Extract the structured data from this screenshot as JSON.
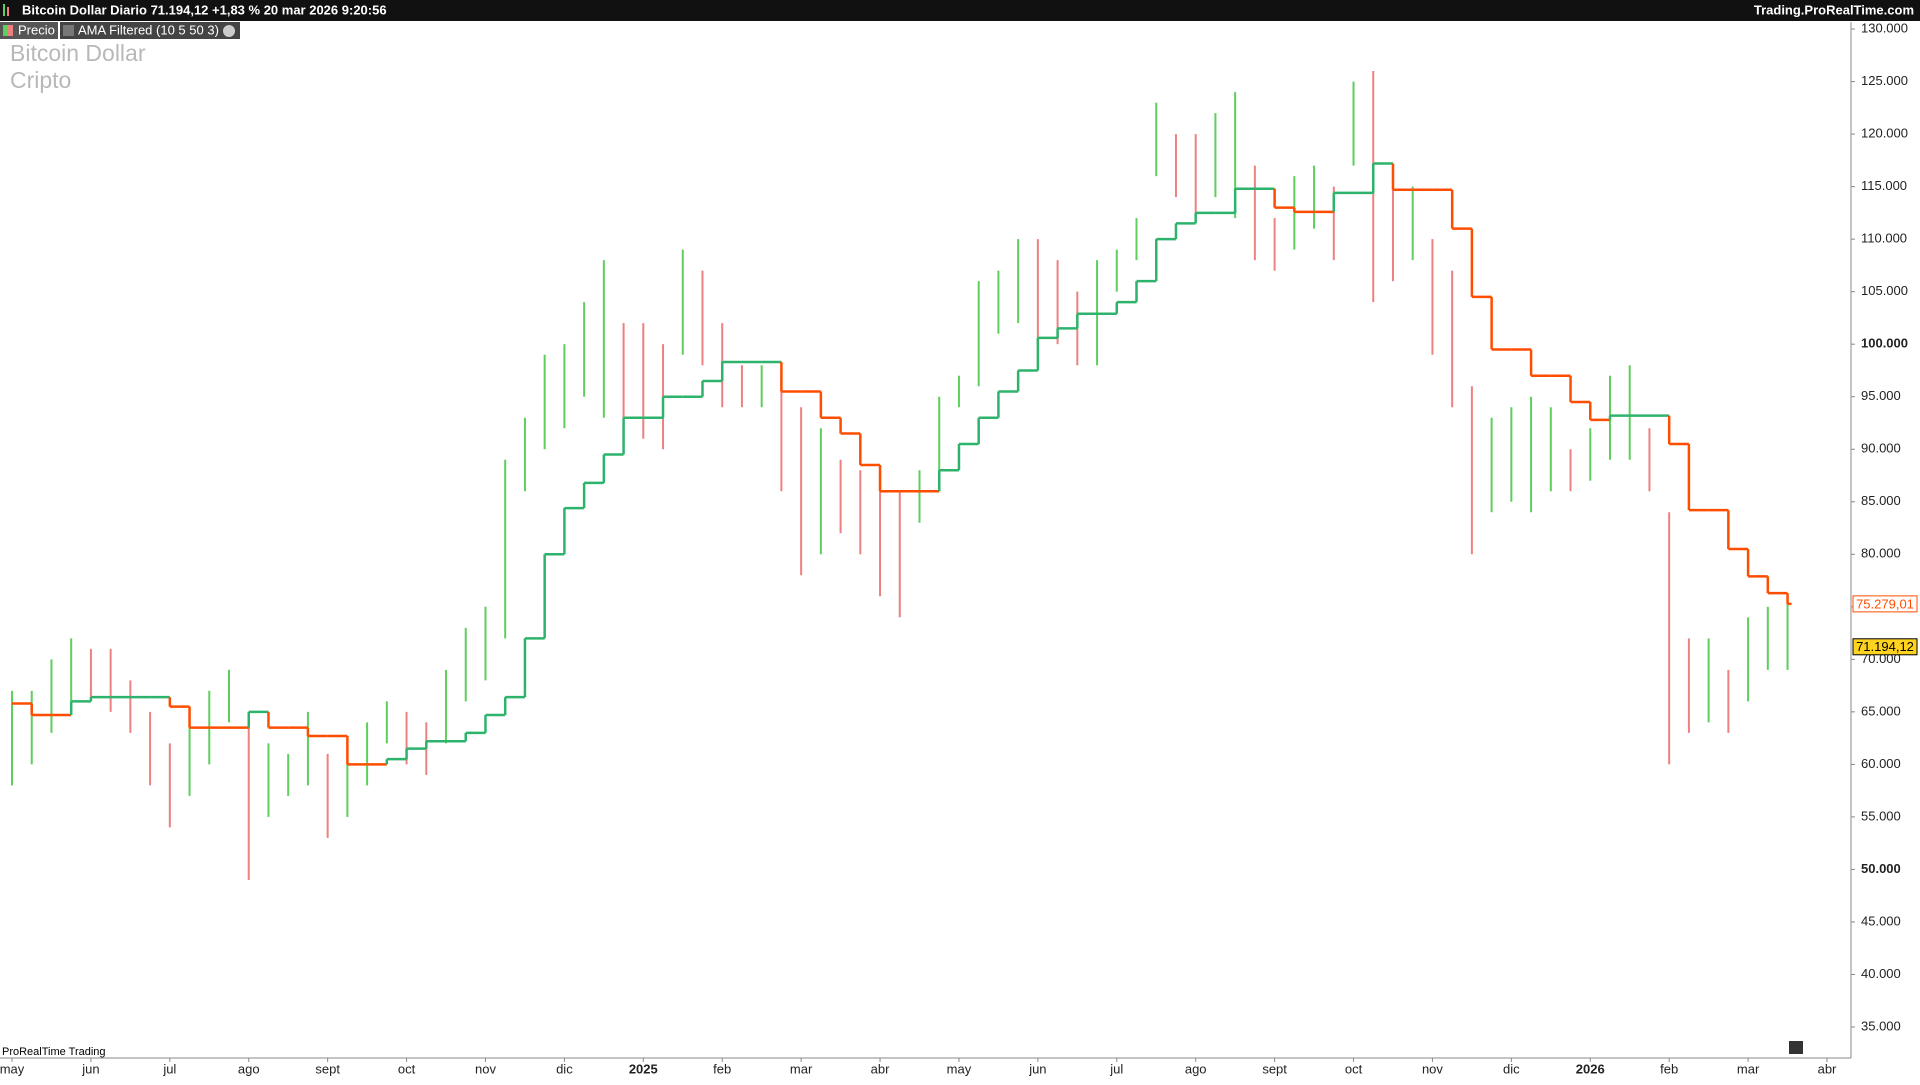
{
  "chart_data": {
    "type": "ohlc",
    "title": "Bitcoin Dollar Diario 71.194,12 +1,83 % 20 mar 2026 9:20:56",
    "source": "Trading.ProRealTime.com",
    "watermark": [
      "Bitcoin Dollar",
      "Cripto"
    ],
    "footer": "ProRealTime Trading",
    "categories": [
      "may",
      null,
      null,
      null,
      "jun",
      null,
      null,
      null,
      "jul",
      null,
      null,
      null,
      "ago",
      null,
      null,
      null,
      "sept",
      null,
      null,
      null,
      "oct",
      null,
      null,
      null,
      "nov",
      null,
      null,
      null,
      "dic",
      null,
      null,
      null,
      "2025",
      null,
      null,
      null,
      "feb",
      null,
      null,
      null,
      "mar",
      null,
      null,
      null,
      "abr",
      null,
      null,
      null,
      "may",
      null,
      null,
      null,
      "jun",
      null,
      null,
      null,
      "jul",
      null,
      null,
      null,
      "ago",
      null,
      null,
      null,
      "sept",
      null,
      null,
      null,
      "oct",
      null,
      null,
      null,
      "nov",
      null,
      null,
      null,
      "dic",
      null,
      null,
      null,
      "2026",
      null,
      null,
      null,
      "feb",
      null,
      null,
      null,
      "mar",
      null,
      null,
      null,
      "abr"
    ],
    "series": [
      {
        "name": "Precio",
        "color_up": "#5ccf5c",
        "color_down": "#ee8080",
        "high": [
          67000,
          67000,
          70000,
          72000,
          71000,
          71000,
          68000,
          65000,
          62000,
          64000,
          67000,
          69000,
          65000,
          62000,
          61000,
          65000,
          61000,
          60000,
          64000,
          66000,
          65000,
          64000,
          69000,
          73000,
          75000,
          89000,
          93000,
          99000,
          100000,
          104000,
          108000,
          102000,
          102000,
          100000,
          109000,
          107000,
          102000,
          98000,
          98000,
          97000,
          94000,
          92000,
          89000,
          88000,
          86000,
          86000,
          88000,
          95000,
          97000,
          106000,
          107000,
          110000,
          110000,
          108000,
          105000,
          108000,
          109000,
          112000,
          123000,
          120000,
          120000,
          122000,
          124000,
          117000,
          112000,
          116000,
          117000,
          115000,
          125000,
          126000,
          116000,
          115000,
          110000,
          107000,
          96000,
          93000,
          94000,
          95000,
          94000,
          90000,
          92000,
          97000,
          98000,
          92000,
          84000,
          72000,
          72000,
          69000,
          74000,
          75000,
          76000,
          null,
          null
        ],
        "low": [
          58000,
          60000,
          63000,
          66000,
          66000,
          65000,
          63000,
          58000,
          54000,
          57000,
          60000,
          64000,
          49000,
          55000,
          57000,
          58000,
          53000,
          55000,
          58000,
          62000,
          60000,
          59000,
          62000,
          66000,
          68000,
          72000,
          86000,
          90000,
          92000,
          95000,
          93000,
          92000,
          91000,
          90000,
          99000,
          98000,
          94000,
          94000,
          94000,
          86000,
          78000,
          80000,
          82000,
          80000,
          76000,
          74000,
          83000,
          86000,
          94000,
          96000,
          101000,
          102000,
          100000,
          100000,
          98000,
          98000,
          105000,
          108000,
          116000,
          114000,
          112000,
          114000,
          112000,
          108000,
          107000,
          109000,
          111000,
          108000,
          117000,
          104000,
          106000,
          108000,
          99000,
          94000,
          80000,
          84000,
          85000,
          84000,
          86000,
          86000,
          87000,
          89000,
          89000,
          86000,
          60000,
          63000,
          64000,
          63000,
          66000,
          69000,
          69000,
          null,
          null
        ]
      },
      {
        "name": "AMA Filtered (10 5 50 3)",
        "color_up": "#2db36b",
        "color_down": "#ff4d00",
        "values": [
          65800,
          64700,
          64700,
          66000,
          66400,
          66400,
          66400,
          66400,
          65500,
          63500,
          63500,
          63500,
          65000,
          63500,
          63500,
          62700,
          62700,
          60000,
          60000,
          60500,
          61500,
          62200,
          62200,
          63000,
          64700,
          66400,
          72000,
          80000,
          84400,
          86800,
          89500,
          93000,
          93000,
          95000,
          95000,
          96500,
          98300,
          98300,
          98300,
          95500,
          95500,
          93000,
          91500,
          88500,
          86000,
          86000,
          86000,
          88000,
          90500,
          93000,
          95500,
          97500,
          100600,
          101500,
          102900,
          102900,
          104000,
          106000,
          110000,
          111500,
          112500,
          112500,
          114800,
          114800,
          113000,
          112600,
          112600,
          114400,
          114400,
          117200,
          114700,
          114700,
          114700,
          111000,
          104500,
          99500,
          99500,
          97000,
          97000,
          94500,
          92800,
          93200,
          93200,
          93200,
          90500,
          84200,
          84200,
          80500,
          77900,
          76300,
          75279.01,
          null,
          null
        ]
      }
    ],
    "price_tags": [
      {
        "value": 75279.01,
        "label": "75.279,01",
        "color": "#ff4d00",
        "fill": "#ffffff"
      },
      {
        "value": 71194.12,
        "label": "71.194,12",
        "color": "#000000",
        "fill": "#ffd21f"
      }
    ],
    "ylim": [
      32050,
      130670
    ],
    "yticks": [
      {
        "value": 35000,
        "label": "35.000"
      },
      {
        "value": 40000,
        "label": "40.000"
      },
      {
        "value": 45000,
        "label": "45.000"
      },
      {
        "value": 50000,
        "label": "50.000",
        "bold": true
      },
      {
        "value": 55000,
        "label": "55.000"
      },
      {
        "value": 60000,
        "label": "60.000"
      },
      {
        "value": 65000,
        "label": "65.000"
      },
      {
        "value": 70000,
        "label": "70.000"
      },
      {
        "value": 75000,
        "label": "75.000"
      },
      {
        "value": 80000,
        "label": "80.000"
      },
      {
        "value": 85000,
        "label": "85.000"
      },
      {
        "value": 90000,
        "label": "90.000"
      },
      {
        "value": 95000,
        "label": "95.000"
      },
      {
        "value": 100000,
        "label": "100.000",
        "bold": true
      },
      {
        "value": 105000,
        "label": "105.000"
      },
      {
        "value": 110000,
        "label": "110.000"
      },
      {
        "value": 115000,
        "label": "115.000"
      },
      {
        "value": 120000,
        "label": "120.000"
      },
      {
        "value": 125000,
        "label": "125.000"
      },
      {
        "value": 130000,
        "label": "130.000"
      }
    ],
    "grid": false
  }
}
